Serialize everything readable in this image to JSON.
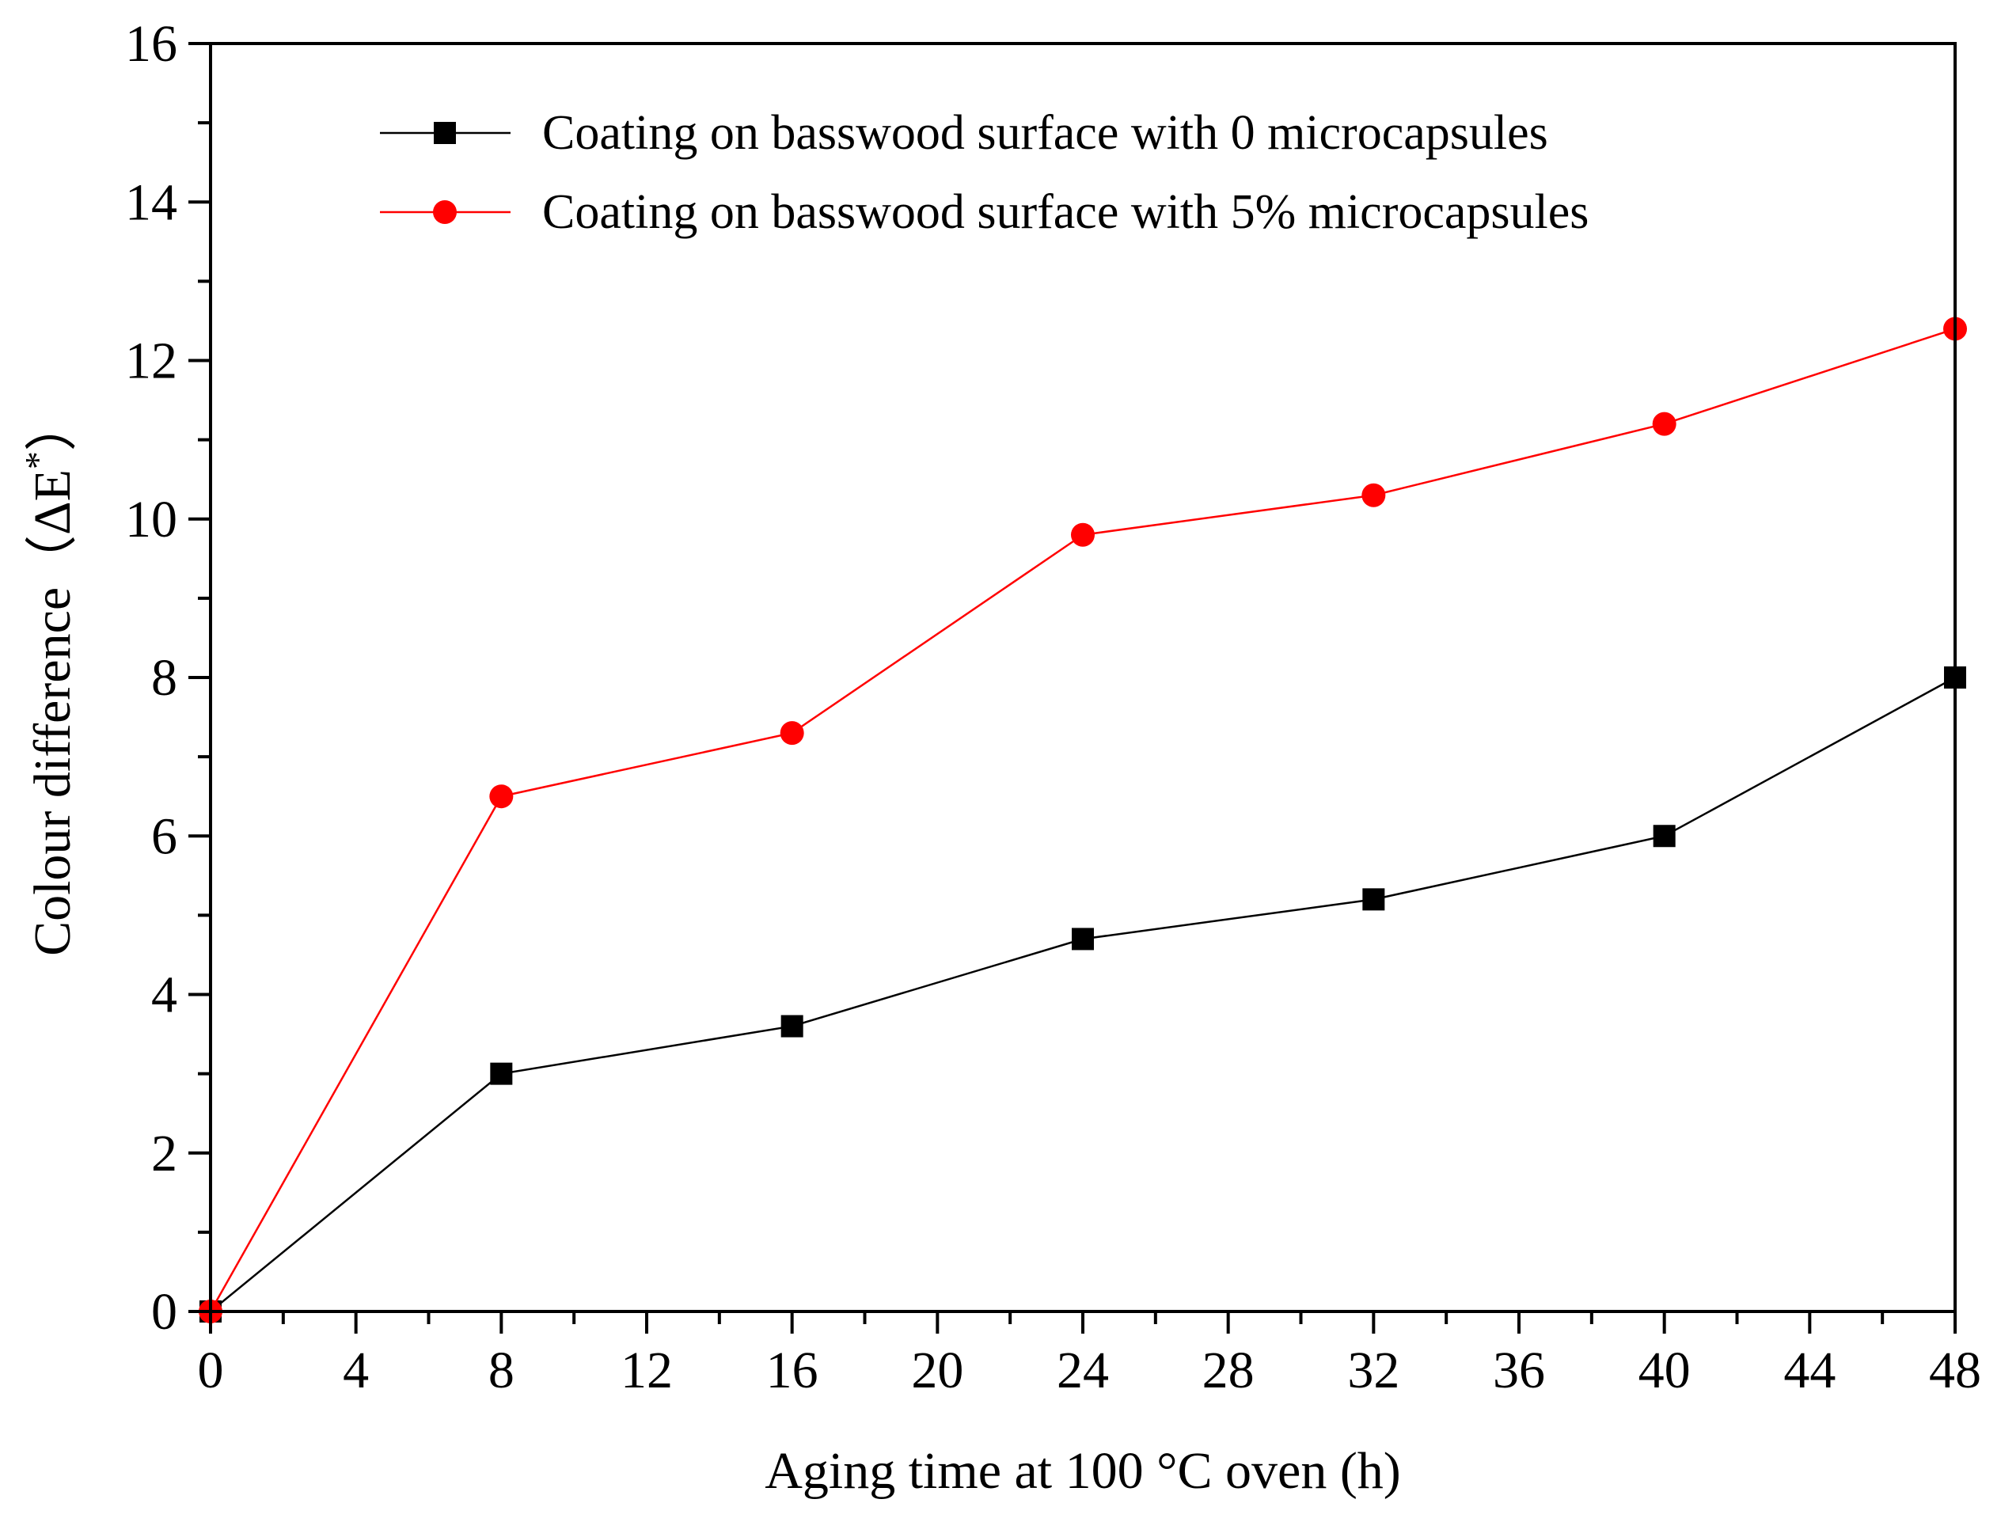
{
  "chart_data": {
    "type": "line",
    "title": "",
    "xlabel": "Aging time at 100 °C oven (h)",
    "ylabel_main": "Colour difference（ΔE",
    "ylabel_sup": "*",
    "ylabel_end": "）",
    "xlim": [
      0,
      48
    ],
    "ylim": [
      0,
      16
    ],
    "x_ticks": [
      0,
      4,
      8,
      12,
      16,
      20,
      24,
      28,
      32,
      36,
      40,
      44,
      48
    ],
    "x_tick_labels": [
      "0",
      "4",
      "8",
      "12",
      "16",
      "20",
      "24",
      "28",
      "32",
      "36",
      "40",
      "44",
      "48"
    ],
    "y_ticks": [
      0,
      2,
      4,
      6,
      8,
      10,
      12,
      14,
      16
    ],
    "y_tick_labels": [
      "0",
      "2",
      "4",
      "6",
      "8",
      "10",
      "12",
      "14",
      "16"
    ],
    "grid": false,
    "legend_position": "top-left",
    "series": [
      {
        "name": "Coating on basswood surface with 0 microcapsules",
        "color": "#000000",
        "marker": "square",
        "x": [
          0,
          8,
          16,
          24,
          32,
          40,
          48
        ],
        "values": [
          0,
          3.0,
          3.6,
          4.7,
          5.2,
          6.0,
          8.0
        ]
      },
      {
        "name": "Coating on basswood surface with 5% microcapsules",
        "color": "#ff0000",
        "marker": "circle",
        "x": [
          0,
          8,
          16,
          24,
          32,
          40,
          48
        ],
        "values": [
          0,
          6.5,
          7.3,
          9.8,
          10.3,
          11.2,
          12.4
        ]
      }
    ]
  }
}
